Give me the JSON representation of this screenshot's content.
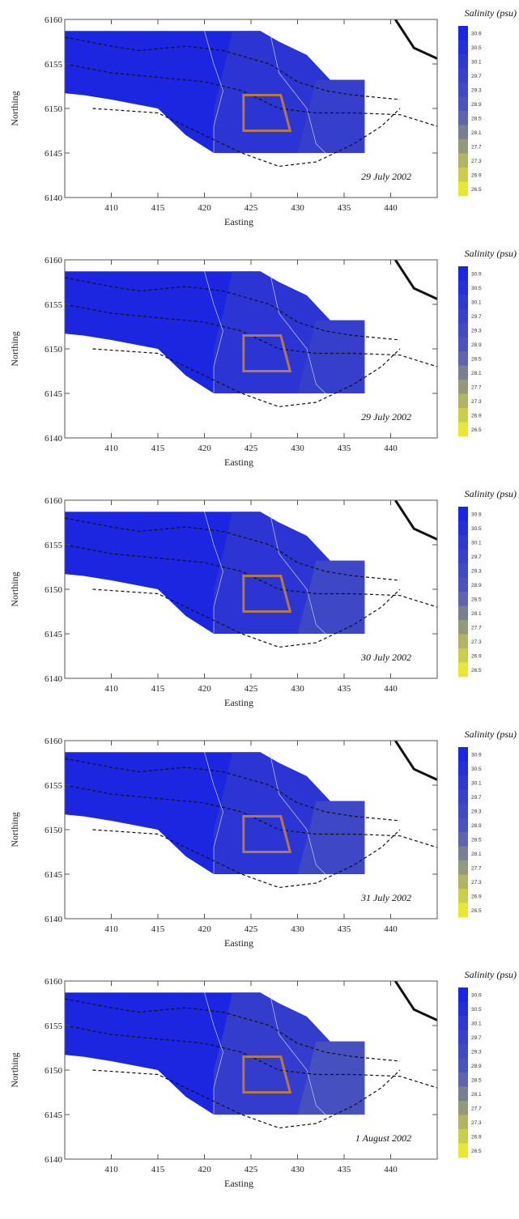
{
  "chart_data": [
    {
      "type": "heatmap",
      "date": "29 July 2002",
      "xlabel": "Easting",
      "ylabel": "Northing",
      "xlim": [
        405,
        445
      ],
      "ylim": [
        6140,
        6160
      ],
      "xticks": [
        410,
        415,
        420,
        425,
        430,
        435,
        440
      ],
      "yticks": [
        6140,
        6145,
        6150,
        6155,
        6160
      ],
      "legend": {
        "title": "Salinity (psu)",
        "levels": [
          "30.9",
          "30.5",
          "30.1",
          "29.7",
          "29.3",
          "28.9",
          "28.5",
          "28.1",
          "27.7",
          "27.3",
          "26.9",
          "26.5"
        ]
      },
      "dominant_salinity_range": [
        29.7,
        30.9
      ]
    },
    {
      "type": "heatmap",
      "date": "29 July 2002",
      "xlabel": "Easting",
      "ylabel": "Northing",
      "xlim": [
        405,
        445
      ],
      "ylim": [
        6140,
        6160
      ],
      "xticks": [
        410,
        415,
        420,
        425,
        430,
        435,
        440
      ],
      "yticks": [
        6140,
        6145,
        6150,
        6155,
        6160
      ],
      "legend": {
        "title": "Salinity (psu)",
        "levels": [
          "30.9",
          "30.5",
          "30.1",
          "29.7",
          "29.3",
          "28.9",
          "28.5",
          "28.1",
          "27.7",
          "27.3",
          "26.9",
          "26.5"
        ]
      },
      "dominant_salinity_range": [
        29.7,
        30.9
      ]
    },
    {
      "type": "heatmap",
      "date": "30 July 2002",
      "xlabel": "Easting",
      "ylabel": "Northing",
      "xlim": [
        405,
        445
      ],
      "ylim": [
        6140,
        6160
      ],
      "xticks": [
        410,
        415,
        420,
        425,
        430,
        435,
        440
      ],
      "yticks": [
        6140,
        6145,
        6150,
        6155,
        6160
      ],
      "legend": {
        "title": "Salinity (psu)",
        "levels": [
          "30.9",
          "30.5",
          "30.1",
          "29.7",
          "29.3",
          "28.9",
          "28.5",
          "28.1",
          "27.7",
          "27.3",
          "26.9",
          "26.5"
        ]
      },
      "dominant_salinity_range": [
        29.3,
        30.9
      ]
    },
    {
      "type": "heatmap",
      "date": "31 July 2002",
      "xlabel": "Easting",
      "ylabel": "Northing",
      "xlim": [
        405,
        445
      ],
      "ylim": [
        6140,
        6160
      ],
      "xticks": [
        410,
        415,
        420,
        425,
        430,
        435,
        440
      ],
      "yticks": [
        6140,
        6145,
        6150,
        6155,
        6160
      ],
      "legend": {
        "title": "Salinity (psu)",
        "levels": [
          "30.9",
          "30.5",
          "30.1",
          "29.7",
          "29.3",
          "28.9",
          "28.5",
          "28.1",
          "27.7",
          "27.3",
          "26.9",
          "26.5"
        ]
      },
      "dominant_salinity_range": [
        29.3,
        30.9
      ]
    },
    {
      "type": "heatmap",
      "date": "1 August 2002",
      "xlabel": "Easting",
      "ylabel": "Northing",
      "xlim": [
        405,
        445
      ],
      "ylim": [
        6140,
        6160
      ],
      "xticks": [
        410,
        415,
        420,
        425,
        430,
        435,
        440
      ],
      "yticks": [
        6140,
        6145,
        6150,
        6155,
        6160
      ],
      "legend": {
        "title": "Salinity (psu)",
        "levels": [
          "30.9",
          "30.5",
          "30.1",
          "29.7",
          "29.3",
          "28.9",
          "28.5",
          "28.1",
          "27.7",
          "27.3",
          "26.9",
          "26.5"
        ]
      },
      "dominant_salinity_range": [
        28.9,
        30.9
      ]
    }
  ],
  "colors": {
    "high_salinity": "#1c26e0",
    "mid_salinity": "#5058b8",
    "low_salinity": "#e8e832",
    "study_box": "#b07a4a",
    "coast": "#111111"
  }
}
